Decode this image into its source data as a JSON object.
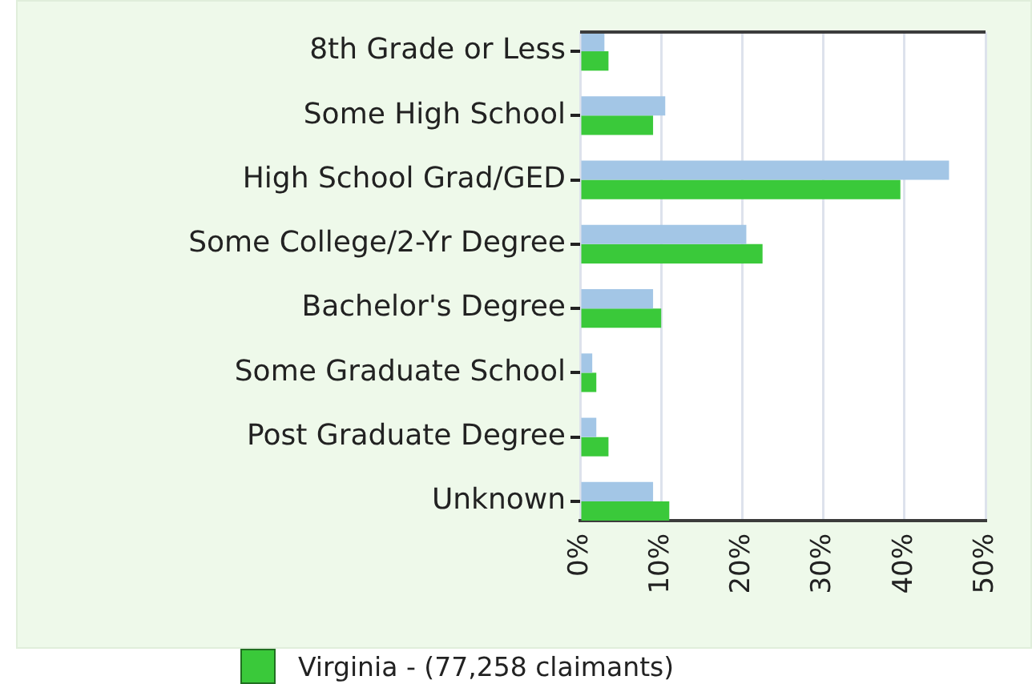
{
  "chart_data": {
    "type": "bar",
    "orientation": "horizontal",
    "categories": [
      "8th Grade or Less",
      "Some High School",
      "High School Grad/GED",
      "Some College/2-Yr Degree",
      "Bachelor's Degree",
      "Some Graduate School",
      "Post Graduate Degree",
      "Unknown"
    ],
    "series": [
      {
        "color": "#a3c6e6",
        "values": [
          3,
          10.5,
          45.5,
          20.5,
          9,
          1.5,
          2,
          9
        ]
      },
      {
        "name": "Virginia - (77,258 claimants)",
        "color": "#3ac93a",
        "values": [
          3.5,
          9,
          39.5,
          22.5,
          10,
          2,
          3.5,
          11
        ]
      }
    ],
    "xlim": [
      0,
      50
    ],
    "xticks": [
      {
        "value": 0,
        "label": "0%"
      },
      {
        "value": 10,
        "label": "10%"
      },
      {
        "value": 20,
        "label": "20%"
      },
      {
        "value": 30,
        "label": "30%"
      },
      {
        "value": 40,
        "label": "40%"
      },
      {
        "value": 50,
        "label": "50%"
      }
    ],
    "grid": "x",
    "legend": "bottom"
  }
}
